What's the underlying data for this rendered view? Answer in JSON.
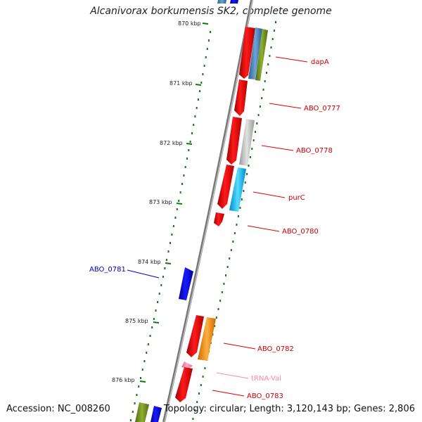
{
  "header": {
    "title": "Alcanivorax borkumensis SK2, complete genome"
  },
  "footer": {
    "accession": "Accession: NC_008260",
    "topology": "Topology: circular; Length: 3,120,143 bp; Genes: 2,806"
  },
  "ticks": [
    "870 kbp",
    "871 kbp",
    "872 kbp",
    "873 kbp",
    "874 kbp",
    "875 kbp",
    "876 kbp"
  ],
  "gene_labels": [
    "dapA",
    "ABO_0777",
    "ABO_0778",
    "purC",
    "ABO_0780",
    "ABO_0781",
    "ABO_0782",
    "tRNA-Val",
    "ABO_0783"
  ],
  "colors": {
    "forward_gene": "#ff0000",
    "reverse_gene": "#0000ff",
    "trna": "#ff88aa",
    "backbone": "#888888",
    "tick": "#117711",
    "label_red": "#cc0000",
    "label_blue": "#0000bb",
    "label_pink": "#ff88aa"
  }
}
